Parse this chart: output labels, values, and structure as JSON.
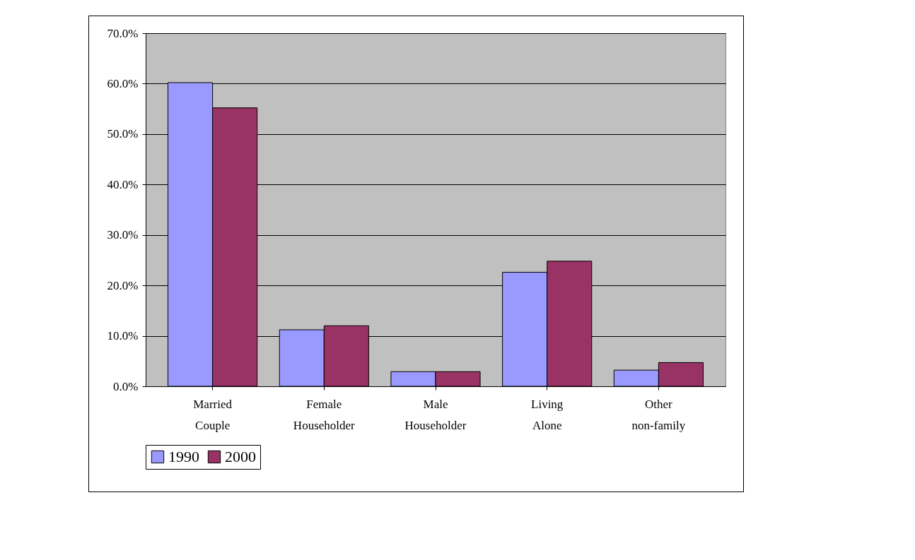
{
  "chart_data": {
    "type": "bar",
    "categories": [
      "Married Couple",
      "Female Householder",
      "Male Householder",
      "Living Alone",
      "Other non-family"
    ],
    "series": [
      {
        "name": "1990",
        "color": "#9999ff",
        "values": [
          60.2,
          11.2,
          2.9,
          22.6,
          3.2
        ]
      },
      {
        "name": "2000",
        "color": "#993366",
        "values": [
          55.2,
          12.0,
          2.9,
          24.8,
          4.7
        ]
      }
    ],
    "ylim": [
      0,
      70
    ],
    "yticks": [
      {
        "value": 0,
        "label": "0.0%"
      },
      {
        "value": 10,
        "label": "10.0%"
      },
      {
        "value": 20,
        "label": "20.0%"
      },
      {
        "value": 30,
        "label": "30.0%"
      },
      {
        "value": 40,
        "label": "40.0%"
      },
      {
        "value": 50,
        "label": "50.0%"
      },
      {
        "value": 60,
        "label": "60.0%"
      },
      {
        "value": 70,
        "label": "70.0%"
      }
    ],
    "grid": "y",
    "legend": "bottom"
  }
}
